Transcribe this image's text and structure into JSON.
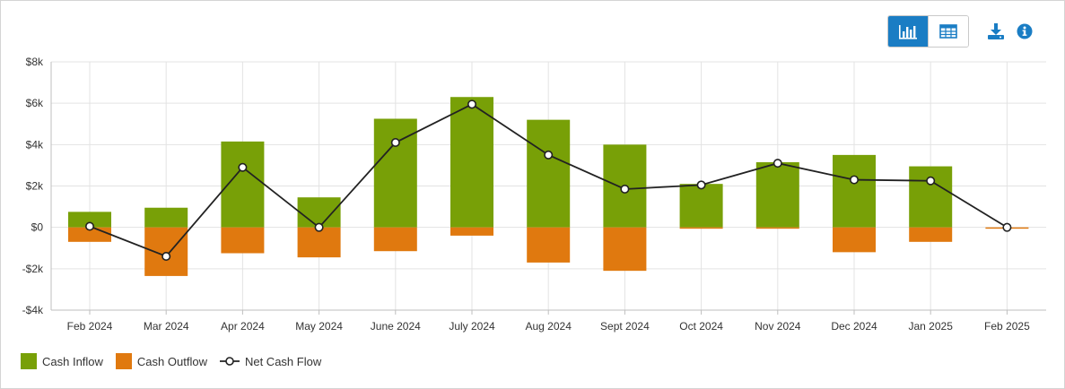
{
  "colors": {
    "inflow": "#78a007",
    "outflow": "#e0790f",
    "net": "#222222",
    "accent": "#1a7dc4",
    "grid": "#e3e3e3"
  },
  "toolbar": {
    "chart_view_icon": "bar-chart-icon",
    "table_view_icon": "table-icon",
    "download_icon": "download-icon",
    "info_icon": "info-icon"
  },
  "chart_data": {
    "type": "bar",
    "categories": [
      "Feb 2024",
      "Mar 2024",
      "Apr 2024",
      "May 2024",
      "June 2024",
      "July 2024",
      "Aug 2024",
      "Sept 2024",
      "Oct 2024",
      "Nov 2024",
      "Dec 2024",
      "Jan 2025",
      "Feb 2025"
    ],
    "series": [
      {
        "name": "Cash Inflow",
        "type": "bar",
        "values": [
          750,
          950,
          4150,
          1450,
          5250,
          6300,
          5200,
          4000,
          2100,
          3150,
          3500,
          2950,
          0
        ]
      },
      {
        "name": "Cash Outflow",
        "type": "bar",
        "values": [
          -700,
          -2350,
          -1250,
          -1450,
          -1150,
          -400,
          -1700,
          -2100,
          -50,
          -50,
          -1200,
          -700,
          -50
        ]
      },
      {
        "name": "Net Cash Flow",
        "type": "line",
        "values": [
          50,
          -1400,
          2900,
          0,
          4100,
          5950,
          3500,
          1850,
          2050,
          3100,
          2300,
          2250,
          0
        ]
      }
    ],
    "yticks": [
      -4000,
      -2000,
      0,
      2000,
      4000,
      6000,
      8000
    ],
    "ytick_labels": [
      "-$4k",
      "-$2k",
      "$0",
      "$2k",
      "$4k",
      "$6k",
      "$8k"
    ],
    "ylim": [
      -4000,
      8000
    ],
    "grid": true,
    "legend_position": "bottom-left"
  }
}
